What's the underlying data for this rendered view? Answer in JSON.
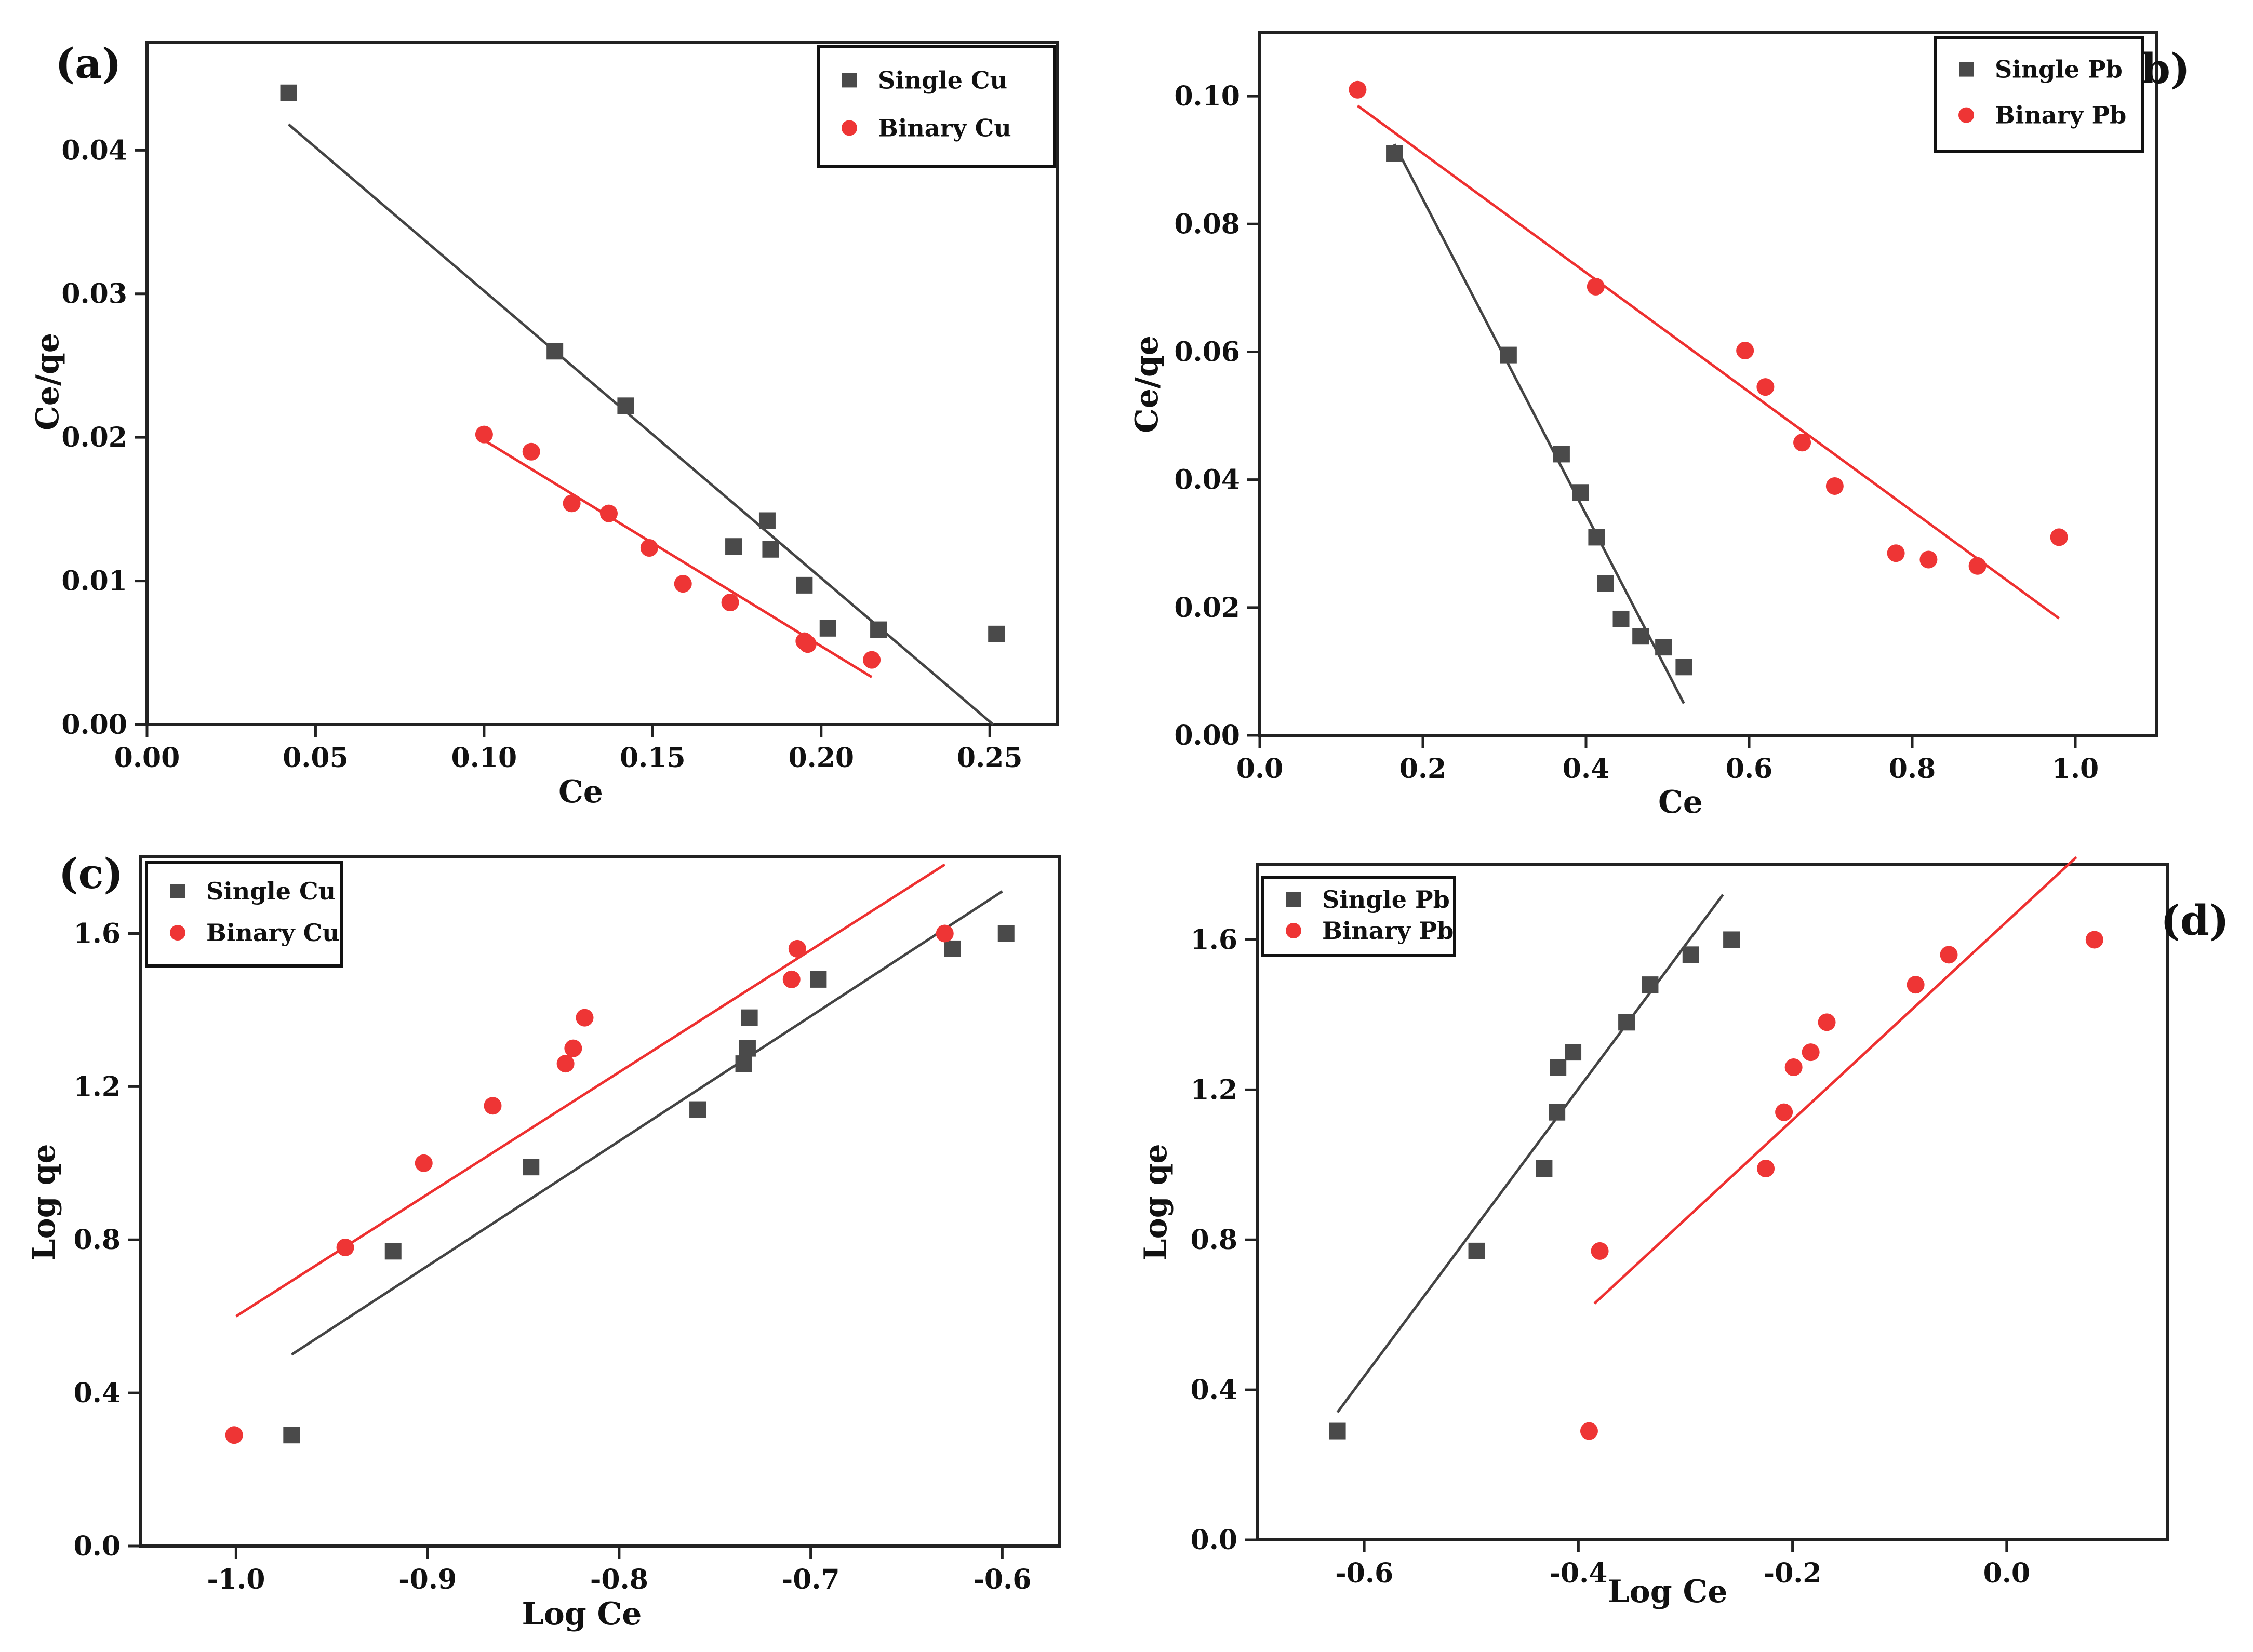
{
  "colors": {
    "single": "#4a4a4a",
    "binary": "#ee3535",
    "single_line": "#444444",
    "binary_line": "#ee3030"
  },
  "chart_data": [
    {
      "panel": "(a)",
      "type": "scatter",
      "title": "",
      "xlabel": "Ce",
      "ylabel": "Ce/qe",
      "xlim": [
        0.0,
        0.27
      ],
      "ylim": [
        0.0,
        0.0475
      ],
      "xticks": [
        0.0,
        0.05,
        0.1,
        0.15,
        0.2,
        0.25
      ],
      "xtick_labels": [
        "0.00",
        "0.05",
        "0.10",
        "0.15",
        "0.20",
        "0.25"
      ],
      "yticks": [
        0.0,
        0.01,
        0.02,
        0.03,
        0.04
      ],
      "ytick_labels": [
        "0.00",
        "0.01",
        "0.02",
        "0.03",
        "0.04"
      ],
      "legend_position": "top-right",
      "series": [
        {
          "name": "Single Cu",
          "marker": "square",
          "x": [
            0.042,
            0.121,
            0.142,
            0.174,
            0.184,
            0.185,
            0.195,
            0.202,
            0.217,
            0.252
          ],
          "y": [
            0.044,
            0.026,
            0.0222,
            0.0124,
            0.0142,
            0.0122,
            0.0097,
            0.0067,
            0.0066,
            0.0063
          ],
          "fit": {
            "x": [
              0.042,
              0.251
            ],
            "y": [
              0.0418,
              0.0
            ]
          }
        },
        {
          "name": "Binary Cu",
          "marker": "circle",
          "x": [
            0.1,
            0.114,
            0.126,
            0.137,
            0.149,
            0.159,
            0.173,
            0.195,
            0.196,
            0.215
          ],
          "y": [
            0.0202,
            0.019,
            0.0154,
            0.0147,
            0.0123,
            0.0098,
            0.0085,
            0.0058,
            0.0056,
            0.0045
          ],
          "fit": {
            "x": [
              0.1,
              0.215
            ],
            "y": [
              0.0198,
              0.0033
            ]
          }
        }
      ]
    },
    {
      "panel": "(b)",
      "type": "scatter",
      "title": "",
      "xlabel": "Ce",
      "ylabel": "Ce/qe",
      "xlim": [
        0.0,
        1.1
      ],
      "ylim": [
        0.0,
        0.11
      ],
      "xticks": [
        0.0,
        0.2,
        0.4,
        0.6,
        0.8,
        1.0
      ],
      "xtick_labels": [
        "0.0",
        "0.2",
        "0.4",
        "0.6",
        "0.8",
        "1.0"
      ],
      "yticks": [
        0.0,
        0.02,
        0.04,
        0.06,
        0.08,
        0.1
      ],
      "ytick_labels": [
        "0.00",
        "0.02",
        "0.04",
        "0.06",
        "0.08",
        "0.10"
      ],
      "legend_position": "top-right",
      "series": [
        {
          "name": "Single Pb",
          "marker": "square",
          "x": [
            0.165,
            0.305,
            0.37,
            0.393,
            0.413,
            0.424,
            0.443,
            0.467,
            0.495,
            0.52
          ],
          "y": [
            0.091,
            0.0595,
            0.044,
            0.038,
            0.031,
            0.0238,
            0.0182,
            0.0155,
            0.0138,
            0.0107
          ],
          "fit": {
            "x": [
              0.165,
              0.52
            ],
            "y": [
              0.0925,
              0.005
            ]
          }
        },
        {
          "name": "Binary Pb",
          "marker": "circle",
          "x": [
            0.12,
            0.412,
            0.595,
            0.62,
            0.665,
            0.705,
            0.78,
            0.82,
            0.88,
            0.98
          ],
          "y": [
            0.101,
            0.0702,
            0.0602,
            0.0545,
            0.0458,
            0.039,
            0.0285,
            0.0275,
            0.0265,
            0.031
          ],
          "fit": {
            "x": [
              0.12,
              0.98
            ],
            "y": [
              0.0985,
              0.0183
            ]
          }
        }
      ]
    },
    {
      "panel": "(c)",
      "type": "scatter",
      "title": "",
      "xlabel": "Log Ce",
      "ylabel": "Log qe",
      "xlim": [
        -1.05,
        -0.57
      ],
      "ylim": [
        0.0,
        1.8
      ],
      "xticks": [
        -1.0,
        -0.9,
        -0.8,
        -0.7,
        -0.6
      ],
      "xtick_labels": [
        "-1.0",
        "-0.9",
        "-0.8",
        "-0.7",
        "-0.6"
      ],
      "yticks": [
        0.0,
        0.4,
        0.8,
        1.2,
        1.6
      ],
      "ytick_labels": [
        "0.0",
        "0.4",
        "0.8",
        "1.2",
        "1.6"
      ],
      "legend_position": "top-left",
      "series": [
        {
          "name": "Single Cu",
          "marker": "square",
          "x": [
            -0.971,
            -0.918,
            -0.846,
            -0.759,
            -0.735,
            -0.733,
            -0.732,
            -0.696,
            -0.626,
            -0.598
          ],
          "y": [
            0.29,
            0.77,
            0.99,
            1.14,
            1.26,
            1.3,
            1.38,
            1.48,
            1.56,
            1.6
          ],
          "fit": {
            "x": [
              -0.971,
              -0.6
            ],
            "y": [
              0.5,
              1.71
            ]
          }
        },
        {
          "name": "Binary Cu",
          "marker": "circle",
          "x": [
            -1.001,
            -0.943,
            -0.902,
            -0.866,
            -0.828,
            -0.824,
            -0.818,
            -0.71,
            -0.707,
            -0.63
          ],
          "y": [
            0.29,
            0.78,
            1.0,
            1.15,
            1.26,
            1.3,
            1.38,
            1.48,
            1.56,
            1.6
          ],
          "fit": {
            "x": [
              -1.0,
              -0.63
            ],
            "y": [
              0.6,
              1.78
            ]
          }
        }
      ]
    },
    {
      "panel": "(d)",
      "type": "scatter",
      "title": "",
      "xlabel": "Log Ce",
      "ylabel": "Log qe",
      "xlim": [
        -0.7,
        0.15
      ],
      "ylim": [
        0.0,
        1.8
      ],
      "xticks": [
        -0.6,
        -0.4,
        -0.2,
        0.0
      ],
      "xtick_labels": [
        "-0.6",
        "-0.4",
        "-0.2",
        "0.0"
      ],
      "yticks": [
        0.0,
        0.4,
        0.8,
        1.2,
        1.6
      ],
      "ytick_labels": [
        "0.0",
        "0.4",
        "0.8",
        "1.2",
        "1.6"
      ],
      "legend_position": "top-left",
      "series": [
        {
          "name": "Single Pb",
          "marker": "square",
          "x": [
            -0.625,
            -0.495,
            -0.432,
            -0.42,
            -0.419,
            -0.405,
            -0.355,
            -0.333,
            -0.295,
            -0.257
          ],
          "y": [
            0.29,
            0.77,
            0.99,
            1.14,
            1.26,
            1.3,
            1.38,
            1.48,
            1.56,
            1.6
          ],
          "fit": {
            "x": [
              -0.625,
              -0.265
            ],
            "y": [
              0.34,
              1.72
            ]
          }
        },
        {
          "name": "Binary Pb",
          "marker": "circle",
          "x": [
            -0.39,
            -0.38,
            -0.225,
            -0.208,
            -0.199,
            -0.183,
            -0.168,
            -0.085,
            -0.054,
            0.082
          ],
          "y": [
            0.29,
            0.77,
            0.99,
            1.14,
            1.26,
            1.3,
            1.38,
            1.48,
            1.56,
            1.6
          ],
          "fit": {
            "x": [
              -0.385,
              0.065
            ],
            "y": [
              0.63,
              1.82
            ]
          }
        }
      ]
    }
  ]
}
